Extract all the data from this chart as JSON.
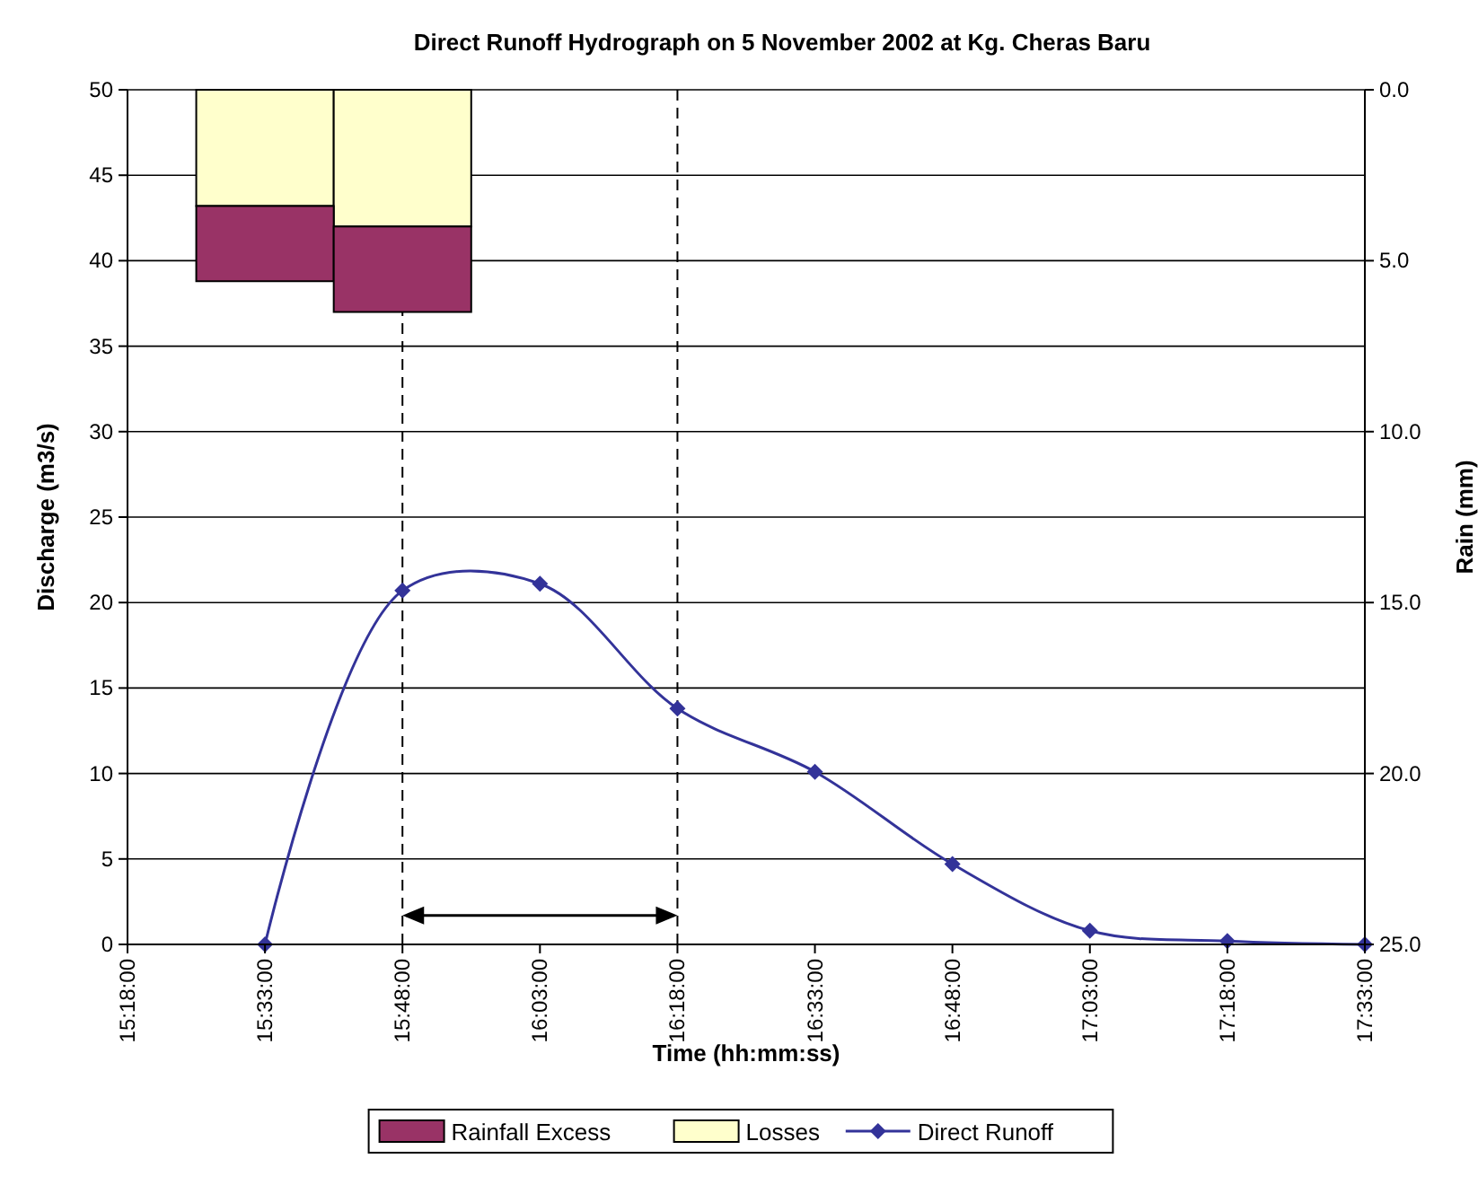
{
  "chart_data": {
    "type": "line",
    "title": "Direct Runoff Hydrograph on 5 November 2002 at Kg. Cheras Baru",
    "xlabel": "Time (hh:mm:ss)",
    "ylabel": "Discharge (m3/s)",
    "y2label": "Rain (mm)",
    "x": [
      15.55,
      15.8,
      16.05,
      16.3,
      16.55,
      16.8,
      17.05,
      17.3,
      17.55
    ],
    "xlim": [
      15.3,
      17.55
    ],
    "xticks": [
      {
        "value": 15.3,
        "label": "15:18:00"
      },
      {
        "value": 15.55,
        "label": "15:33:00"
      },
      {
        "value": 15.8,
        "label": "15:48:00"
      },
      {
        "value": 16.05,
        "label": "16:03:00"
      },
      {
        "value": 16.3,
        "label": "16:18:00"
      },
      {
        "value": 16.55,
        "label": "16:33:00"
      },
      {
        "value": 16.8,
        "label": "16:48:00"
      },
      {
        "value": 17.05,
        "label": "17:03:00"
      },
      {
        "value": 17.3,
        "label": "17:18:00"
      },
      {
        "value": 17.55,
        "label": "17:33:00"
      }
    ],
    "ylim": [
      0,
      50
    ],
    "yticks": [
      0,
      5,
      10,
      15,
      20,
      25,
      30,
      35,
      40,
      45,
      50
    ],
    "y2lim": [
      25,
      0
    ],
    "y2ticks": [
      {
        "value": 0,
        "label": "0.0"
      },
      {
        "value": 5,
        "label": "5.0"
      },
      {
        "value": 10,
        "label": "10.0"
      },
      {
        "value": 15,
        "label": "15.0"
      },
      {
        "value": 20,
        "label": "20.0"
      },
      {
        "value": 25,
        "label": "25.0"
      }
    ],
    "stacked": true,
    "series": [
      {
        "name": "Losses",
        "type": "bar",
        "axis": "y2",
        "color": "#ffffcc",
        "values": [
          3.4,
          4.0,
          null,
          null,
          null,
          null,
          null,
          null,
          null
        ]
      },
      {
        "name": "Rainfall Excess",
        "type": "bar",
        "axis": "y2",
        "color": "#993366",
        "values": [
          2.2,
          2.5,
          null,
          null,
          null,
          null,
          null,
          null,
          null
        ]
      },
      {
        "name": "Direct Runoff",
        "color": "#333399",
        "marker": "diamond",
        "values": [
          0,
          20.7,
          21.1,
          13.8,
          10.1,
          4.7,
          0.8,
          0.2,
          0
        ]
      }
    ],
    "ref_lines": [
      {
        "axis": "x",
        "value": 15.8,
        "line_style": "dashed",
        "color": "#000000"
      },
      {
        "axis": "x",
        "value": 16.3,
        "line_style": "dashed",
        "color": "#000000"
      }
    ],
    "grid": "y",
    "legend": "bottom"
  }
}
